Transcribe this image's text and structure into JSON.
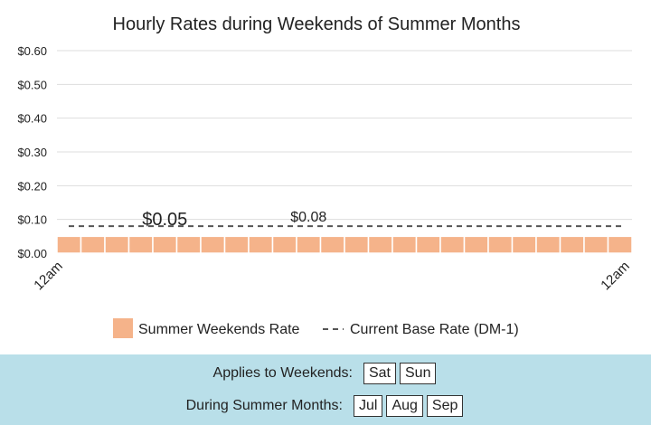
{
  "chart_data": {
    "type": "bar",
    "title": "Hourly Rates during Weekends of Summer Months",
    "ylim": [
      0,
      0.6
    ],
    "yticks": [
      "$0.00",
      "$0.10",
      "$0.20",
      "$0.30",
      "$0.40",
      "$0.50",
      "$0.60"
    ],
    "ytick_values": [
      0,
      0.1,
      0.2,
      0.3,
      0.4,
      0.5,
      0.6
    ],
    "xtick_labels": [
      "12am",
      "12am"
    ],
    "grid": true,
    "legend_position": "bottom",
    "series": [
      {
        "name": "Summer Weekends Rate",
        "color": "#f5b38a",
        "values": [
          0.05,
          0.05,
          0.05,
          0.05,
          0.05,
          0.05,
          0.05,
          0.05,
          0.05,
          0.05,
          0.05,
          0.05,
          0.05,
          0.05,
          0.05,
          0.05,
          0.05,
          0.05,
          0.05,
          0.05,
          0.05,
          0.05,
          0.05,
          0.05
        ]
      },
      {
        "name": "Current Base Rate (DM-1)",
        "style": "dashed",
        "color": "#555555",
        "value": 0.08
      }
    ],
    "annotations": [
      {
        "text": "$0.05",
        "x_index": 4,
        "y": 0.05
      },
      {
        "text": "$0.08",
        "x_index": 10,
        "y": 0.08
      }
    ]
  },
  "footer": {
    "weekends_label": "Applies to Weekends:",
    "weekend_days": [
      "Sat",
      "Sun"
    ],
    "months_label": "During Summer Months:",
    "months": [
      "Jul",
      "Aug",
      "Sep"
    ]
  }
}
